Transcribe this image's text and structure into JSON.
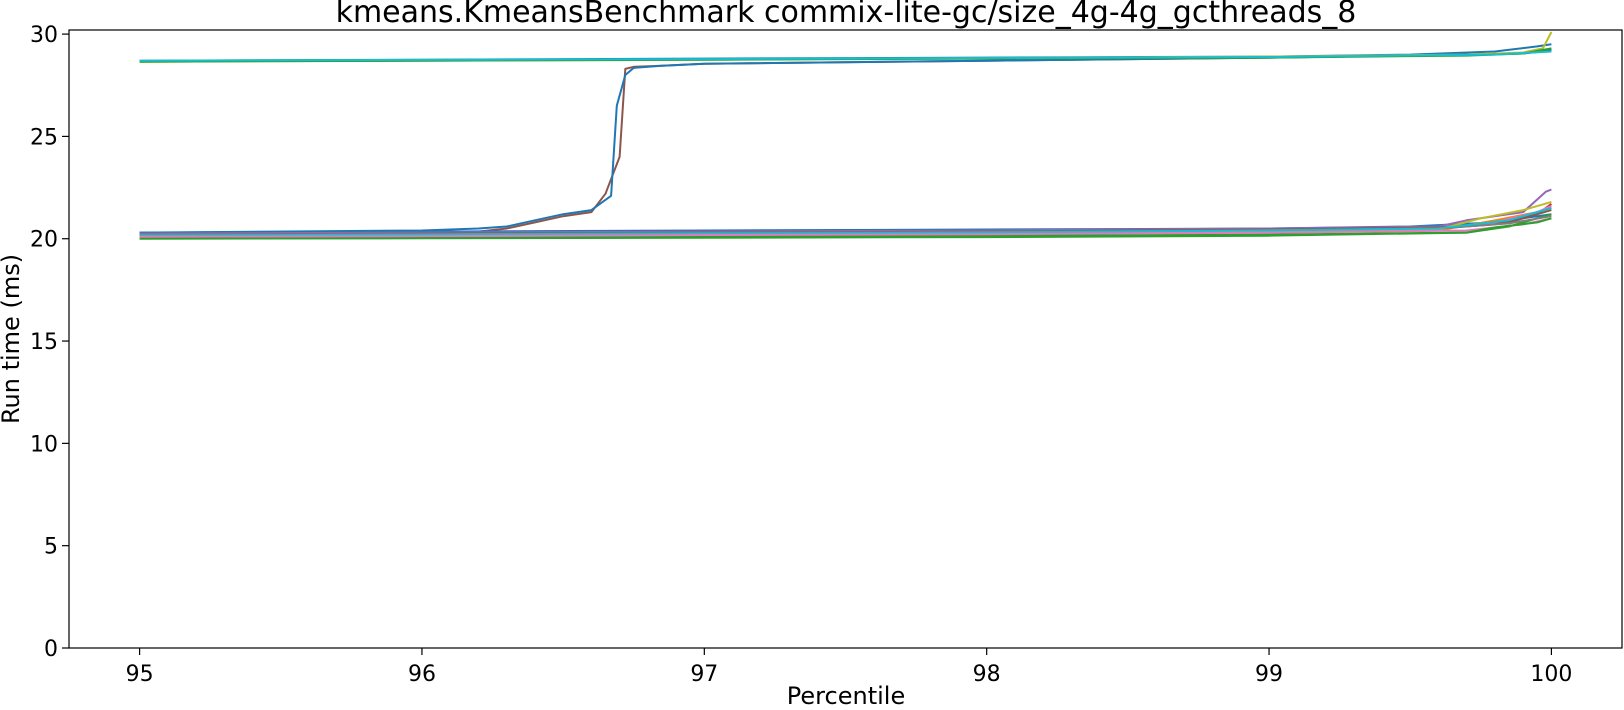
{
  "chart_data": {
    "type": "line",
    "title": "kmeans.KmeansBenchmark commix-lite-gc/size_4g-4g_gcthreads_8",
    "xlabel": "Percentile",
    "ylabel": "Run time (ms)",
    "xlim": [
      94.75,
      100.25
    ],
    "ylim": [
      0,
      30.2
    ],
    "xticks": [
      95,
      96,
      97,
      98,
      99,
      100
    ],
    "xtick_labels": [
      "95",
      "96",
      "97",
      "98",
      "99",
      "100"
    ],
    "yticks": [
      0,
      5,
      10,
      15,
      20,
      25,
      30
    ],
    "ytick_labels": [
      "0",
      "5",
      "10",
      "15",
      "20",
      "25",
      "30"
    ],
    "grid": false,
    "legend": "none",
    "series": [
      {
        "color": "#8c564b",
        "x": [
          95,
          96,
          96.2,
          96.3,
          96.4,
          96.5,
          96.6,
          96.65,
          96.7,
          96.72,
          96.75,
          96.85,
          97,
          98,
          99,
          99.5,
          99.9,
          100
        ],
        "y": [
          20.2,
          20.3,
          20.35,
          20.5,
          20.8,
          21.1,
          21.3,
          22.2,
          24,
          28.3,
          28.4,
          28.45,
          28.55,
          28.7,
          28.85,
          28.95,
          29.05,
          29.2
        ]
      },
      {
        "color": "#1f77b4",
        "x": [
          95,
          96,
          96.2,
          96.3,
          96.4,
          96.5,
          96.6,
          96.67,
          96.69,
          96.72,
          96.75,
          96.85,
          97,
          98,
          99,
          99.5,
          99.9,
          100
        ],
        "y": [
          20.3,
          20.4,
          20.5,
          20.6,
          20.9,
          21.2,
          21.4,
          22.1,
          26.5,
          28,
          28.35,
          28.45,
          28.55,
          28.7,
          28.85,
          28.95,
          29.05,
          29.25
        ]
      },
      {
        "color": "#1f77b4",
        "x": [
          95,
          96,
          97,
          98,
          99,
          99.5,
          99.8,
          99.95,
          100
        ],
        "y": [
          28.7,
          28.75,
          28.8,
          28.85,
          28.9,
          29,
          29.15,
          29.4,
          29.5
        ]
      },
      {
        "color": "#bcbd22",
        "x": [
          95,
          97,
          99,
          99.7,
          99.9,
          99.97,
          100
        ],
        "y": [
          28.65,
          28.75,
          28.9,
          29,
          29.1,
          29.3,
          30.1
        ]
      },
      {
        "color": "#2ca02c",
        "x": [
          95,
          97,
          99,
          99.7,
          99.9,
          100
        ],
        "y": [
          28.65,
          28.75,
          28.85,
          28.95,
          29.05,
          29.3
        ]
      },
      {
        "color": "#17becf",
        "x": [
          95,
          97,
          99,
          99.8,
          100
        ],
        "y": [
          28.7,
          28.78,
          28.88,
          29,
          29.15
        ]
      },
      {
        "color": "#1f77b4",
        "x": [
          95,
          96,
          97,
          98,
          99,
          99.5,
          99.8,
          100
        ],
        "y": [
          20.3,
          20.35,
          20.4,
          20.45,
          20.5,
          20.6,
          20.8,
          21.2
        ]
      },
      {
        "color": "#ff7f0e",
        "x": [
          95,
          96,
          97,
          98,
          99,
          99.6,
          99.8,
          99.95,
          100
        ],
        "y": [
          20.1,
          20.15,
          20.2,
          20.25,
          20.3,
          20.4,
          20.9,
          21.3,
          21.5
        ]
      },
      {
        "color": "#2ca02c",
        "x": [
          95,
          96,
          97,
          98,
          99,
          99.7,
          99.85,
          99.95,
          100
        ],
        "y": [
          20.05,
          20.08,
          20.1,
          20.15,
          20.2,
          20.3,
          20.6,
          21.0,
          21.2
        ]
      },
      {
        "color": "#d62728",
        "x": [
          95,
          96,
          97,
          98,
          99,
          99.6,
          99.8,
          99.95,
          100
        ],
        "y": [
          20.2,
          20.25,
          20.3,
          20.35,
          20.4,
          20.5,
          20.7,
          21.2,
          21.7
        ]
      },
      {
        "color": "#9467bd",
        "x": [
          95,
          96,
          97,
          98,
          99,
          99.6,
          99.7,
          99.9,
          99.98,
          100
        ],
        "y": [
          20.25,
          20.3,
          20.35,
          20.4,
          20.5,
          20.6,
          20.9,
          21.3,
          22.3,
          22.4
        ]
      },
      {
        "color": "#8c564b",
        "x": [
          95,
          96,
          97,
          98,
          99,
          99.6,
          99.85,
          100
        ],
        "y": [
          20.2,
          20.25,
          20.3,
          20.35,
          20.45,
          20.55,
          20.8,
          21.4
        ]
      },
      {
        "color": "#e377c2",
        "x": [
          95,
          96,
          97,
          98,
          99,
          99.6,
          99.8,
          99.95,
          100
        ],
        "y": [
          20.15,
          20.2,
          20.25,
          20.3,
          20.4,
          20.5,
          20.8,
          21.3,
          21.6
        ]
      },
      {
        "color": "#7f7f7f",
        "x": [
          95,
          96,
          97,
          98,
          99,
          99.6,
          99.85,
          100
        ],
        "y": [
          20.2,
          20.22,
          20.28,
          20.33,
          20.42,
          20.5,
          20.75,
          21.1
        ]
      },
      {
        "color": "#bcbd22",
        "x": [
          95,
          96,
          97,
          98,
          99,
          99.6,
          99.75,
          99.9,
          100
        ],
        "y": [
          20.1,
          20.15,
          20.2,
          20.25,
          20.35,
          20.45,
          21.0,
          21.4,
          21.8
        ]
      },
      {
        "color": "#17becf",
        "x": [
          95,
          96,
          97,
          98,
          99,
          99.6,
          99.85,
          100
        ],
        "y": [
          20.15,
          20.2,
          20.25,
          20.3,
          20.4,
          20.5,
          20.9,
          21.5
        ]
      },
      {
        "color": "#e377c2",
        "x": [
          95,
          96,
          97,
          98,
          99,
          99.7,
          99.9,
          100
        ],
        "y": [
          20.1,
          20.12,
          20.18,
          20.22,
          20.3,
          20.4,
          20.7,
          21.0
        ]
      },
      {
        "color": "#2ca02c",
        "x": [
          95,
          96,
          97,
          98,
          99,
          99.7,
          99.8,
          99.95,
          100
        ],
        "y": [
          20.0,
          20.02,
          20.05,
          20.08,
          20.15,
          20.3,
          20.55,
          20.8,
          21.0
        ]
      }
    ]
  }
}
